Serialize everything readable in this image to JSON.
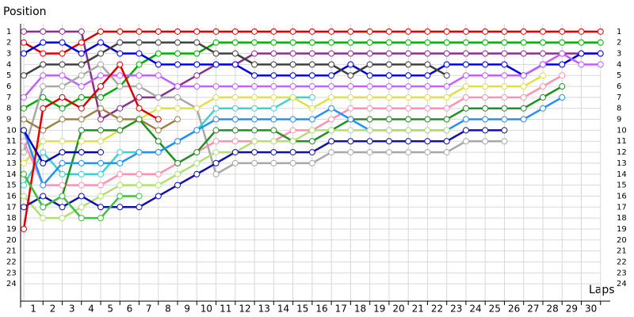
{
  "chart_data": {
    "type": "line",
    "y_label": "Position",
    "x_label": "Laps",
    "x": [
      0,
      1,
      2,
      3,
      4,
      5,
      6,
      7,
      8,
      9,
      10,
      11,
      12,
      13,
      14,
      15,
      16,
      17,
      18,
      19,
      20,
      21,
      22,
      23,
      24,
      25,
      26,
      27,
      28,
      29,
      30
    ],
    "xlim": [
      0,
      31
    ],
    "xticks": [
      1,
      2,
      3,
      4,
      5,
      6,
      7,
      8,
      9,
      10,
      11,
      12,
      13,
      14,
      15,
      16,
      17,
      18,
      19,
      20,
      21,
      22,
      23,
      24,
      25,
      26,
      27,
      28,
      29,
      30
    ],
    "ylim": [
      0,
      25
    ],
    "yticks": [
      1,
      2,
      3,
      4,
      5,
      6,
      7,
      8,
      9,
      10,
      11,
      12,
      13,
      14,
      15,
      16,
      17,
      18,
      19,
      20,
      21,
      22,
      23,
      24
    ],
    "y_reversed": true,
    "grid": true,
    "series": [
      {
        "color": "#e00000",
        "values": [
          2,
          3,
          3,
          2,
          1,
          1,
          1,
          1,
          1,
          1,
          1,
          1,
          1,
          1,
          1,
          1,
          1,
          1,
          1,
          1,
          1,
          1,
          1,
          1,
          1,
          1,
          1,
          1,
          1,
          1,
          1
        ]
      },
      {
        "color": "#00b000",
        "values": [
          8,
          7,
          8,
          7,
          7,
          6,
          4,
          3,
          3,
          3,
          2,
          2,
          2,
          2,
          2,
          2,
          2,
          2,
          2,
          2,
          2,
          2,
          2,
          2,
          2,
          2,
          2,
          2,
          2,
          2,
          2
        ]
      },
      {
        "color": "#8b2f8b",
        "values": [
          1,
          1,
          1,
          1,
          9,
          8,
          7,
          7,
          6,
          5,
          4,
          4,
          3,
          3,
          3,
          3,
          3,
          3,
          3,
          3,
          3,
          3,
          3,
          3,
          3,
          3,
          3,
          3,
          3,
          3,
          3
        ]
      },
      {
        "color": "#0000e0",
        "values": [
          3,
          2,
          2,
          3,
          2,
          3,
          3,
          4,
          4,
          4,
          4,
          4,
          5,
          5,
          5,
          5,
          5,
          4,
          5,
          5,
          5,
          5,
          4,
          4,
          4,
          4,
          5,
          4,
          4,
          3,
          3
        ]
      },
      {
        "color": "#404040",
        "values": [
          5,
          4,
          4,
          4,
          3,
          2,
          2,
          2,
          2,
          2,
          3,
          3,
          4,
          4,
          4,
          4,
          4,
          5,
          4,
          4,
          4,
          4,
          5,
          null,
          null,
          null,
          null,
          null,
          null,
          null,
          null
        ]
      },
      {
        "color": "#c060ff",
        "values": [
          7,
          5,
          5,
          6,
          5,
          5,
          5,
          5,
          6,
          6,
          6,
          6,
          6,
          6,
          6,
          6,
          6,
          6,
          6,
          6,
          6,
          6,
          6,
          5,
          5,
          5,
          5,
          4,
          3,
          4,
          4
        ]
      },
      {
        "color": "#a8a8a8",
        "values": [
          12,
          6,
          6,
          5,
          4,
          6,
          6,
          7,
          7,
          8,
          14,
          13,
          13,
          13,
          13,
          13,
          12,
          12,
          12,
          12,
          12,
          12,
          12,
          11,
          11,
          11,
          null,
          null,
          null,
          null,
          null
        ]
      },
      {
        "color": "#40d0d0",
        "values": [
          15,
          12,
          14,
          14,
          14,
          12,
          12,
          12,
          11,
          10,
          8,
          8,
          8,
          8,
          7,
          7,
          null,
          null,
          null,
          null,
          null,
          null,
          null,
          null,
          null,
          null,
          null,
          null,
          null,
          null,
          null
        ]
      },
      {
        "color": "#e0e040",
        "values": [
          13,
          11,
          11,
          11,
          11,
          10,
          9,
          8,
          8,
          8,
          7,
          7,
          7,
          7,
          7,
          8,
          7,
          7,
          7,
          7,
          7,
          7,
          7,
          6,
          6,
          6,
          6,
          5,
          null,
          null,
          null
        ]
      },
      {
        "color": "#ff90b0",
        "values": [
          11,
          15,
          15,
          15,
          15,
          14,
          14,
          14,
          13,
          12,
          11,
          11,
          11,
          11,
          10,
          10,
          9,
          8,
          8,
          8,
          8,
          8,
          8,
          7,
          7,
          7,
          7,
          6,
          5,
          null,
          null
        ]
      },
      {
        "color": "#a08040",
        "values": [
          9,
          10,
          9,
          9,
          8,
          9,
          9,
          10,
          9,
          null,
          null,
          null,
          null,
          null,
          null,
          null,
          null,
          null,
          null,
          null,
          null,
          null,
          null,
          null,
          null,
          null,
          null,
          null,
          null,
          null,
          null
        ]
      },
      {
        "color": "#209020",
        "values": [
          14,
          17,
          16,
          10,
          10,
          10,
          9,
          11,
          13,
          12,
          10,
          10,
          10,
          10,
          11,
          11,
          10,
          9,
          9,
          9,
          9,
          9,
          9,
          8,
          8,
          8,
          8,
          7,
          6,
          null,
          null
        ]
      },
      {
        "color": "#1e90ff",
        "values": [
          10,
          15,
          13,
          13,
          13,
          13,
          12,
          12,
          11,
          10,
          9,
          9,
          9,
          9,
          9,
          9,
          8,
          9,
          10,
          10,
          10,
          10,
          10,
          9,
          9,
          9,
          9,
          8,
          7,
          null,
          null
        ]
      },
      {
        "color": "#b0e070",
        "values": [
          16,
          18,
          18,
          17,
          16,
          15,
          15,
          15,
          14,
          13,
          12,
          12,
          11,
          11,
          11,
          10,
          10,
          10,
          10,
          10,
          10,
          10,
          10,
          null,
          null,
          null,
          null,
          null,
          null,
          null,
          null
        ]
      },
      {
        "color": "#1010b0",
        "values": [
          17,
          16,
          17,
          16,
          17,
          17,
          17,
          16,
          15,
          14,
          13,
          12,
          12,
          12,
          12,
          12,
          11,
          11,
          11,
          11,
          11,
          11,
          11,
          10,
          10,
          10,
          null,
          null,
          null,
          null,
          null
        ]
      },
      {
        "color": "#e00000",
        "values": [
          19,
          8,
          7,
          8,
          6,
          4,
          8,
          9,
          null,
          null,
          null,
          null,
          null,
          null,
          null,
          null,
          null,
          null,
          null,
          null,
          null,
          null,
          null,
          null,
          null,
          null,
          null,
          null,
          null,
          null,
          null
        ]
      },
      {
        "color": "#40c040",
        "values": [
          14,
          17,
          16,
          18,
          18,
          16,
          16,
          null,
          null,
          null,
          null,
          null,
          null,
          null,
          null,
          null,
          null,
          null,
          null,
          null,
          null,
          null,
          null,
          null,
          null,
          null,
          null,
          null,
          null,
          null,
          null
        ]
      },
      {
        "color": "#0000c0",
        "values": [
          10,
          13,
          12,
          12,
          12,
          null,
          null,
          null,
          null,
          null,
          null,
          null,
          null,
          null,
          null,
          null,
          null,
          null,
          null,
          null,
          null,
          null,
          null,
          null,
          null,
          null,
          null,
          null,
          null,
          null,
          null
        ]
      }
    ]
  }
}
